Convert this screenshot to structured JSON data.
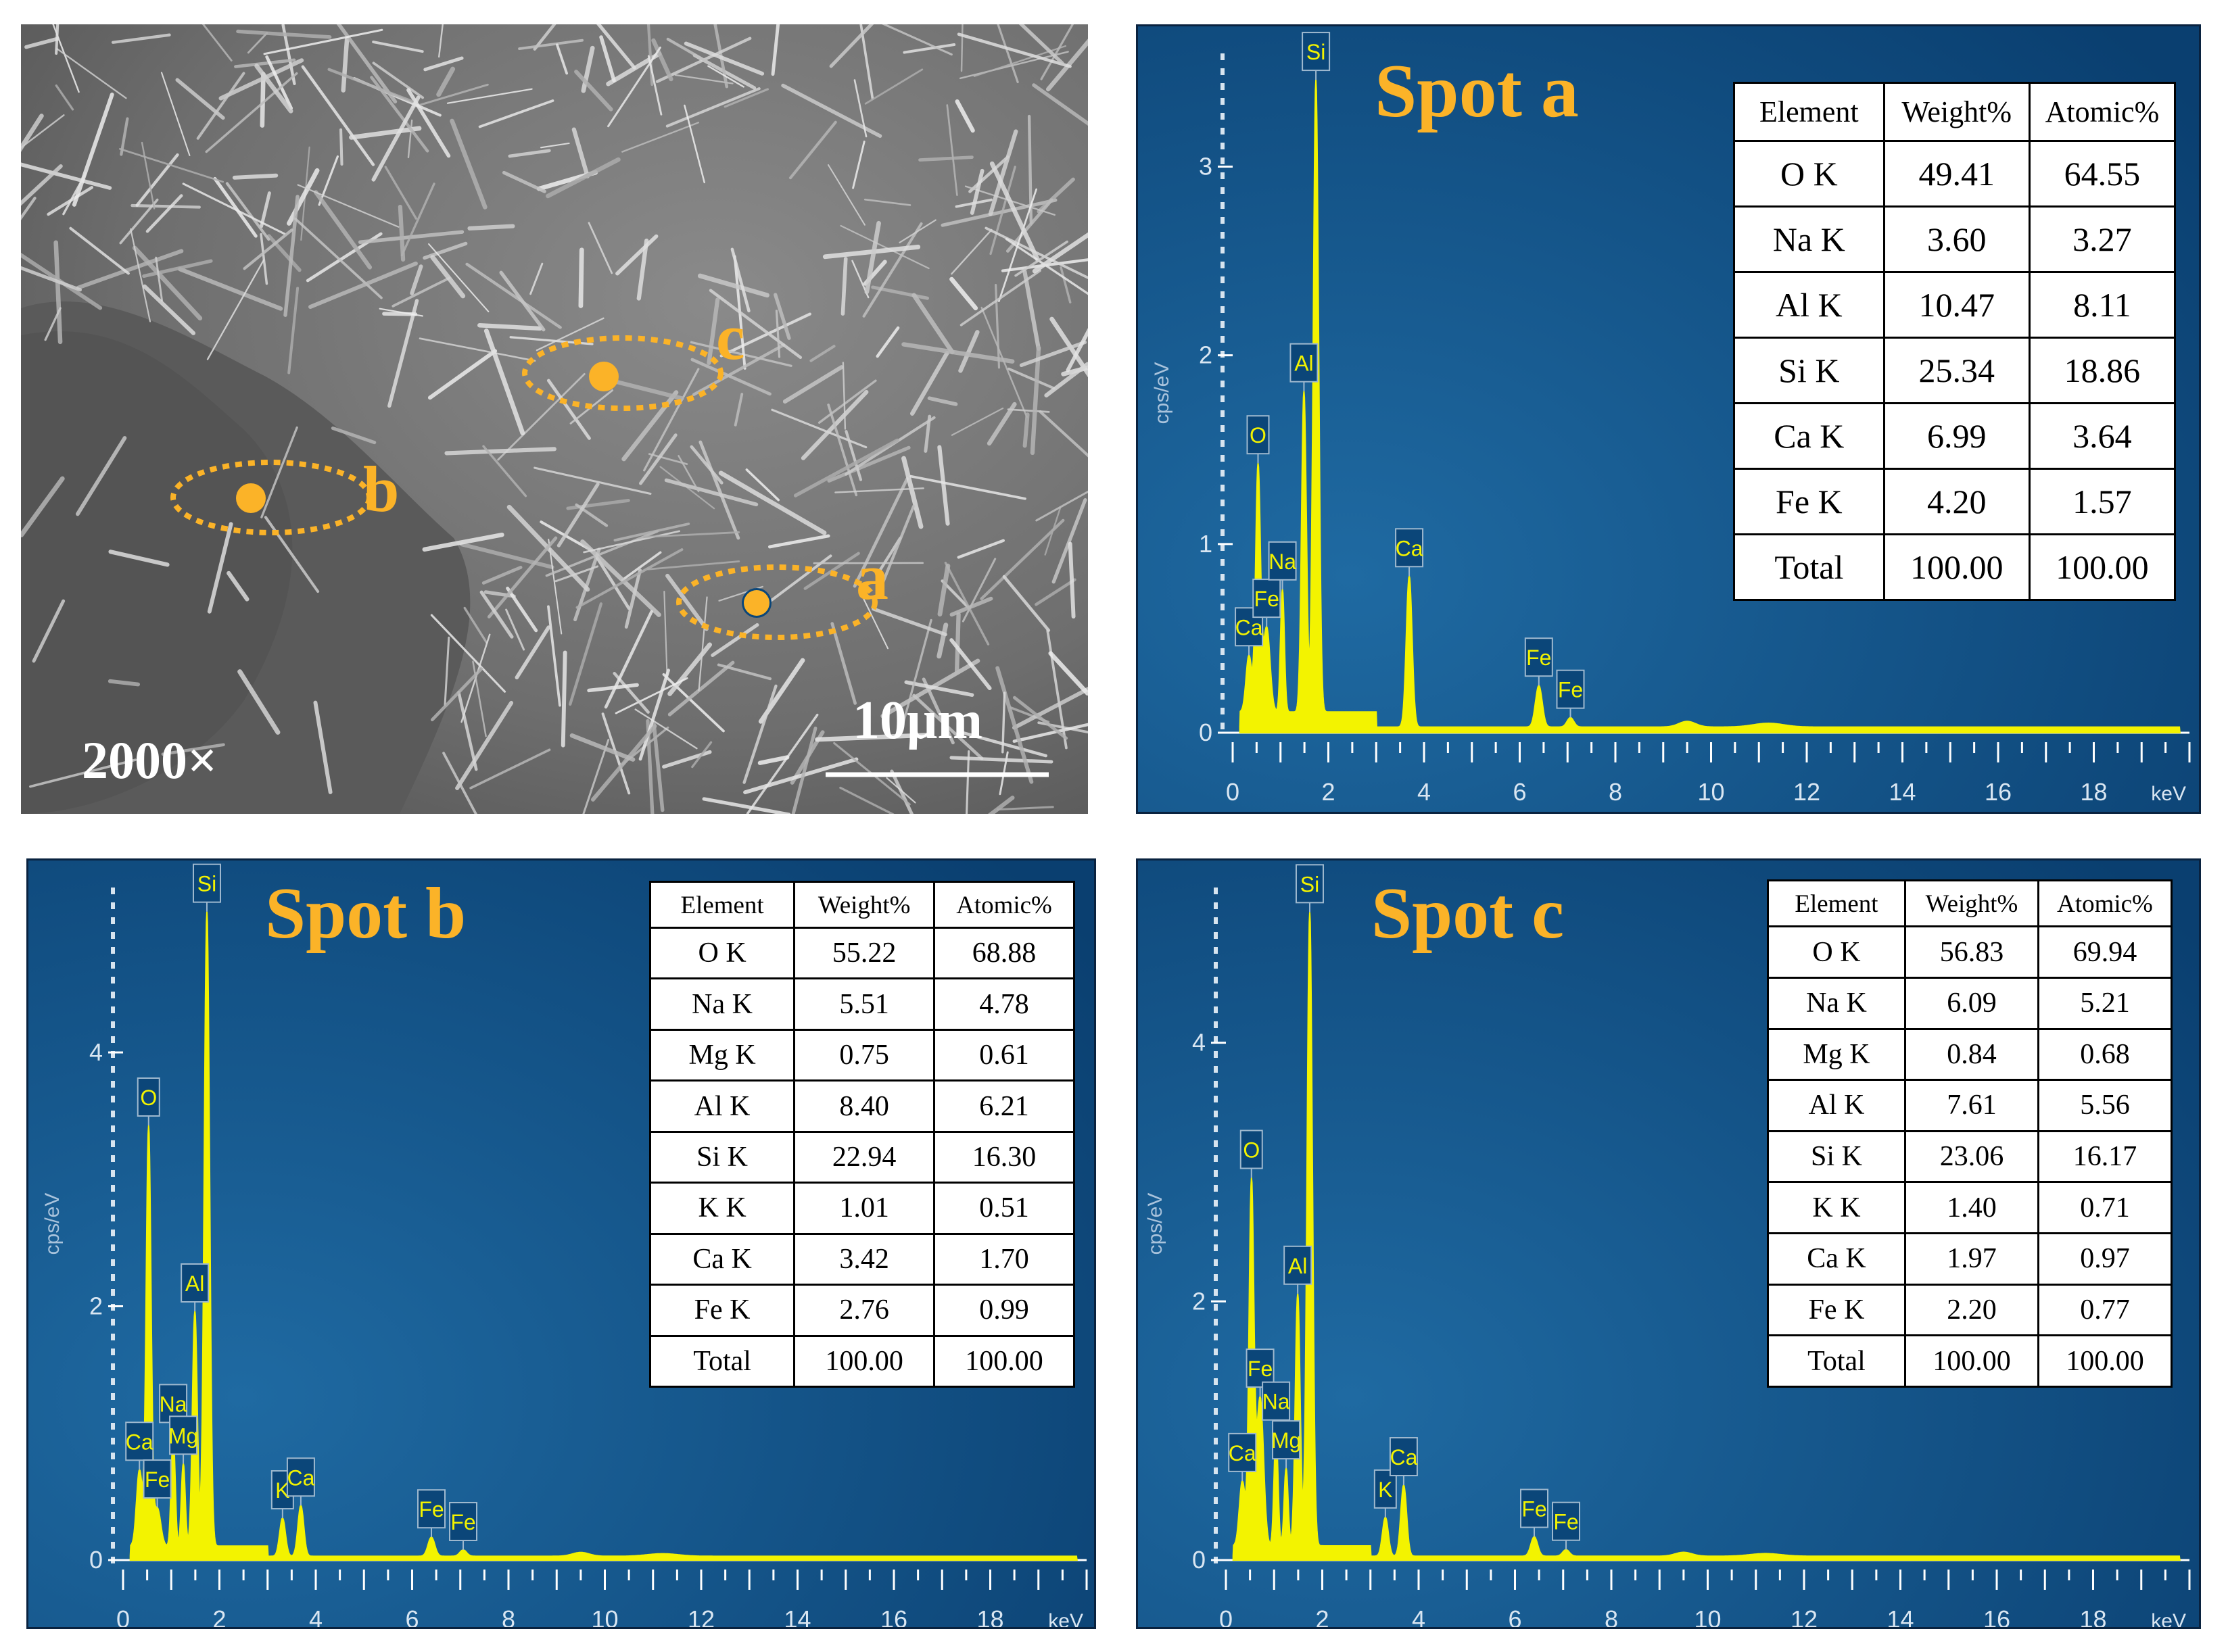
{
  "sem": {
    "magnification": "2000×",
    "scale_bar": "10μm",
    "spots": [
      "a",
      "b",
      "c"
    ]
  },
  "colors": {
    "panel_bg": "#0b4679",
    "spectrum": "#f3f300",
    "title": "#fbb328",
    "axis": "#ffffff"
  },
  "chart_data": [
    {
      "type": "line",
      "title": "Spot a",
      "ylabel": "cps/eV",
      "xlabel": "keV",
      "xlim": [
        0,
        20
      ],
      "ylim": [
        0,
        3.6
      ],
      "x_ticks": [
        0,
        2,
        4,
        6,
        8,
        10,
        12,
        14,
        16,
        18
      ],
      "y_ticks": [
        0,
        1,
        2,
        3
      ],
      "peaks": [
        {
          "label": "Ca",
          "x": 0.34,
          "y": 0.3
        },
        {
          "label": "O",
          "x": 0.53,
          "y": 1.3
        },
        {
          "label": "Fe",
          "x": 0.71,
          "y": 0.45
        },
        {
          "label": "Na",
          "x": 1.04,
          "y": 0.65
        },
        {
          "label": "Al",
          "x": 1.49,
          "y": 1.7
        },
        {
          "label": "Si",
          "x": 1.74,
          "y": 3.35
        },
        {
          "label": "Ca",
          "x": 3.69,
          "y": 0.8
        },
        {
          "label": "Fe",
          "x": 6.4,
          "y": 0.22
        },
        {
          "label": "Fe",
          "x": 7.06,
          "y": 0.05
        }
      ],
      "table": {
        "headers": [
          "Element",
          "Weight%",
          "Atomic%"
        ],
        "rows": [
          [
            "O K",
            "49.41",
            "64.55"
          ],
          [
            "Na K",
            "3.60",
            "3.27"
          ],
          [
            "Al K",
            "10.47",
            "8.11"
          ],
          [
            "Si K",
            "25.34",
            "18.86"
          ],
          [
            "Ca K",
            "6.99",
            "3.64"
          ],
          [
            "Fe K",
            "4.20",
            "1.57"
          ],
          [
            "Total",
            "100.00",
            "100.00"
          ]
        ]
      }
    },
    {
      "type": "line",
      "title": "Spot b",
      "ylabel": "cps/eV",
      "xlabel": "keV",
      "xlim": [
        0,
        20
      ],
      "ylim": [
        0,
        5.3
      ],
      "x_ticks": [
        0,
        2,
        4,
        6,
        8,
        10,
        12,
        14,
        16,
        18
      ],
      "y_ticks": [
        0,
        2,
        4
      ],
      "peaks": [
        {
          "label": "Ca",
          "x": 0.34,
          "y": 0.6
        },
        {
          "label": "O",
          "x": 0.53,
          "y": 3.3
        },
        {
          "label": "Fe",
          "x": 0.71,
          "y": 0.3
        },
        {
          "label": "Na",
          "x": 1.04,
          "y": 0.9
        },
        {
          "label": "Mg",
          "x": 1.25,
          "y": 0.65
        },
        {
          "label": "Al",
          "x": 1.49,
          "y": 1.85
        },
        {
          "label": "Si",
          "x": 1.74,
          "y": 5.0
        },
        {
          "label": "K",
          "x": 3.31,
          "y": 0.3
        },
        {
          "label": "Ca",
          "x": 3.69,
          "y": 0.4
        },
        {
          "label": "Fe",
          "x": 6.4,
          "y": 0.15
        },
        {
          "label": "Fe",
          "x": 7.06,
          "y": 0.05
        }
      ],
      "table": {
        "headers": [
          "Element",
          "Weight%",
          "Atomic%"
        ],
        "rows": [
          [
            "O K",
            "55.22",
            "68.88"
          ],
          [
            "Na K",
            "5.51",
            "4.78"
          ],
          [
            "Mg K",
            "0.75",
            "0.61"
          ],
          [
            "Al K",
            "8.40",
            "6.21"
          ],
          [
            "Si K",
            "22.94",
            "16.30"
          ],
          [
            "K K",
            "1.01",
            "0.51"
          ],
          [
            "Ca K",
            "3.42",
            "1.70"
          ],
          [
            "Fe K",
            "2.76",
            "0.99"
          ],
          [
            "Total",
            "100.00",
            "100.00"
          ]
        ]
      }
    },
    {
      "type": "line",
      "title": "Spot c",
      "ylabel": "cps/eV",
      "xlabel": "keV",
      "xlim": [
        0,
        20
      ],
      "ylim": [
        0,
        5.2
      ],
      "x_ticks": [
        0,
        2,
        4,
        6,
        8,
        10,
        12,
        14,
        16,
        18
      ],
      "y_ticks": [
        0,
        2,
        4
      ],
      "peaks": [
        {
          "label": "Ca",
          "x": 0.34,
          "y": 0.5
        },
        {
          "label": "O",
          "x": 0.53,
          "y": 2.8
        },
        {
          "label": "Fe",
          "x": 0.71,
          "y": 1.15
        },
        {
          "label": "Na",
          "x": 1.04,
          "y": 0.9
        },
        {
          "label": "Mg",
          "x": 1.25,
          "y": 0.6
        },
        {
          "label": "Al",
          "x": 1.49,
          "y": 1.95
        },
        {
          "label": "Si",
          "x": 1.74,
          "y": 4.9
        },
        {
          "label": "K",
          "x": 3.31,
          "y": 0.3
        },
        {
          "label": "Ca",
          "x": 3.69,
          "y": 0.55
        },
        {
          "label": "Fe",
          "x": 6.4,
          "y": 0.15
        },
        {
          "label": "Fe",
          "x": 7.06,
          "y": 0.05
        }
      ],
      "table": {
        "headers": [
          "Element",
          "Weight%",
          "Atomic%"
        ],
        "rows": [
          [
            "O K",
            "56.83",
            "69.94"
          ],
          [
            "Na K",
            "6.09",
            "5.21"
          ],
          [
            "Mg K",
            "0.84",
            "0.68"
          ],
          [
            "Al K",
            "7.61",
            "5.56"
          ],
          [
            "Si K",
            "23.06",
            "16.17"
          ],
          [
            "K K",
            "1.40",
            "0.71"
          ],
          [
            "Ca K",
            "1.97",
            "0.97"
          ],
          [
            "Fe K",
            "2.20",
            "0.77"
          ],
          [
            "Total",
            "100.00",
            "100.00"
          ]
        ]
      }
    }
  ]
}
